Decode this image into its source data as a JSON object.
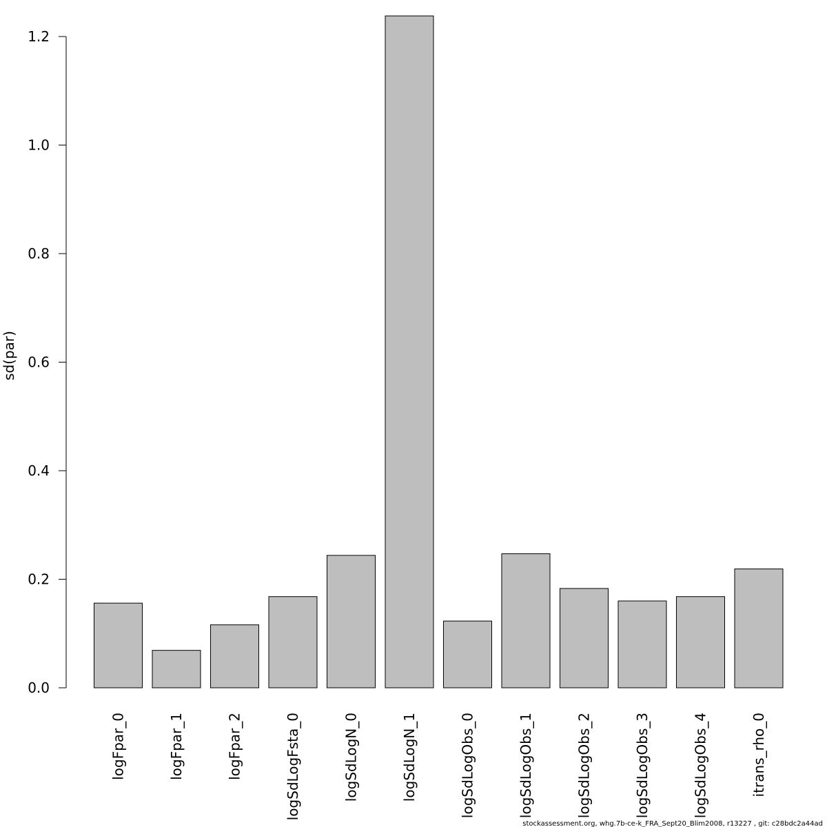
{
  "chart_data": {
    "type": "bar",
    "title": "",
    "xlabel": "",
    "ylabel": "sd(par)",
    "categories": [
      "logFpar_0",
      "logFpar_1",
      "logFpar_2",
      "logSdLogFsta_0",
      "logSdLogN_0",
      "logSdLogN_1",
      "logSdLogObs_0",
      "logSdLogObs_1",
      "logSdLogObs_2",
      "logSdLogObs_3",
      "logSdLogObs_4",
      "itrans_rho_0"
    ],
    "values": [
      0.156,
      0.069,
      0.116,
      0.168,
      0.244,
      1.238,
      0.123,
      0.247,
      0.183,
      0.16,
      0.168,
      0.219
    ],
    "ylim": [
      0,
      1.2
    ],
    "yticks": [
      "0.0",
      "0.2",
      "0.4",
      "0.6",
      "0.8",
      "1.0",
      "1.2"
    ],
    "grid": false,
    "bar_color": "#bebebe",
    "edge_color": "#000000"
  },
  "footer": "stockassessment.org, whg.7b-ce-k_FRA_Sept20_Blim2008, r13227 , git: c28bdc2a44ad"
}
